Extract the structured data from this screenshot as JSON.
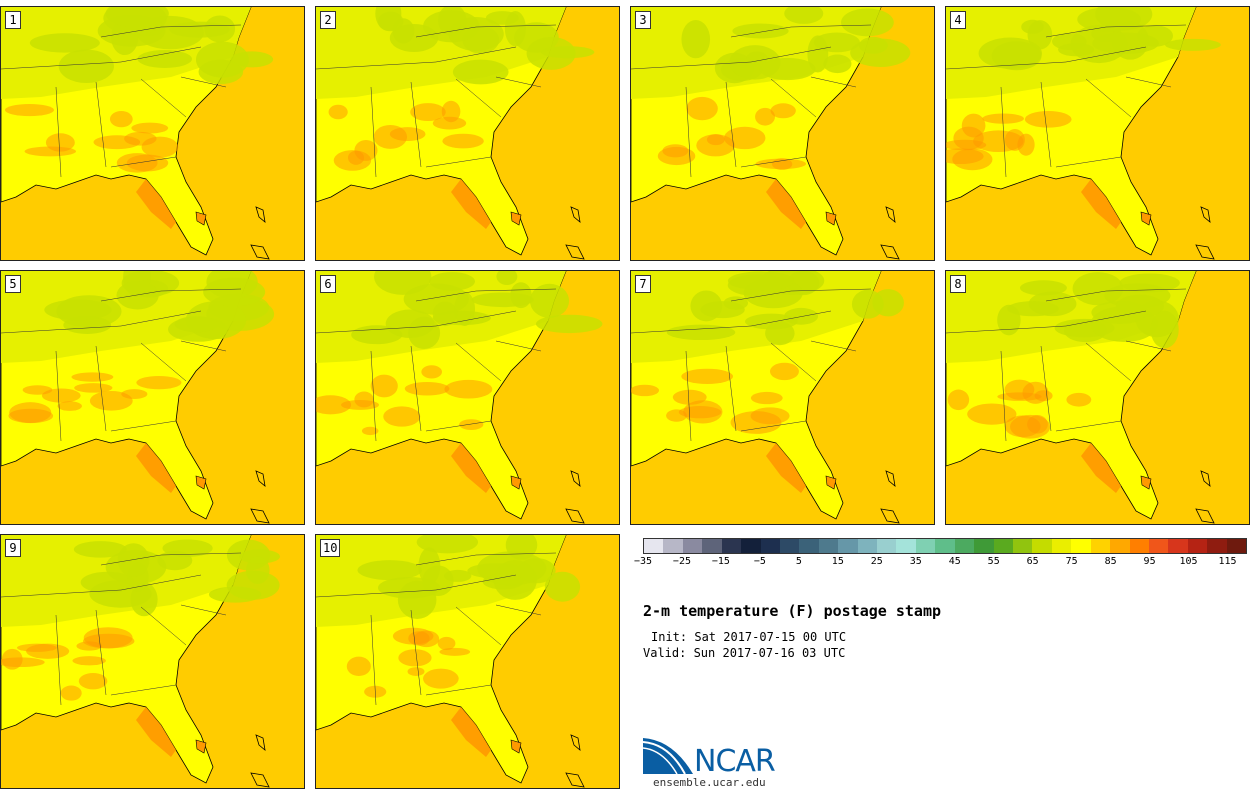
{
  "panels": [
    {
      "label": "1"
    },
    {
      "label": "2"
    },
    {
      "label": "3"
    },
    {
      "label": "4"
    },
    {
      "label": "5"
    },
    {
      "label": "6"
    },
    {
      "label": "7"
    },
    {
      "label": "8"
    },
    {
      "label": "9"
    },
    {
      "label": "10"
    }
  ],
  "title": "2-m temperature (F) postage stamp",
  "init": "Init: Sat 2017-07-15 00 UTC",
  "valid": "Valid: Sun 2017-07-16 03 UTC",
  "colorbar": {
    "ticks": [
      "−35",
      "−25",
      "−15",
      "−5",
      "5",
      "15",
      "25",
      "35",
      "45",
      "55",
      "65",
      "75",
      "85",
      "95",
      "105",
      "115"
    ],
    "colors": [
      "#e6e6ef",
      "#b7b7c7",
      "#8a8aa0",
      "#5e647a",
      "#2b3550",
      "#13203a",
      "#1d2f4f",
      "#2d4a66",
      "#3b6279",
      "#4e7a8d",
      "#6697a8",
      "#7eb3bd",
      "#99cfcf",
      "#a4e3da",
      "#7fd0b2",
      "#5fbe8a",
      "#4caa60",
      "#3f9a37",
      "#5aaa1f",
      "#91c40f",
      "#c4dc00",
      "#eaee00",
      "#ffff00",
      "#ffd200",
      "#ffa800",
      "#ff7f00",
      "#f0561a",
      "#d7361c",
      "#b52314",
      "#8f1c10",
      "#6e1a0e"
    ]
  },
  "logo": {
    "brand": "NCAR",
    "url": "ensemble.ucar.edu"
  },
  "colors": {
    "ocean": "#ffcc00",
    "land_hot": "#ffff00",
    "land_warm": "#e6f000",
    "land_mild": "#c8e000",
    "coast_hot": "#ff9900"
  }
}
